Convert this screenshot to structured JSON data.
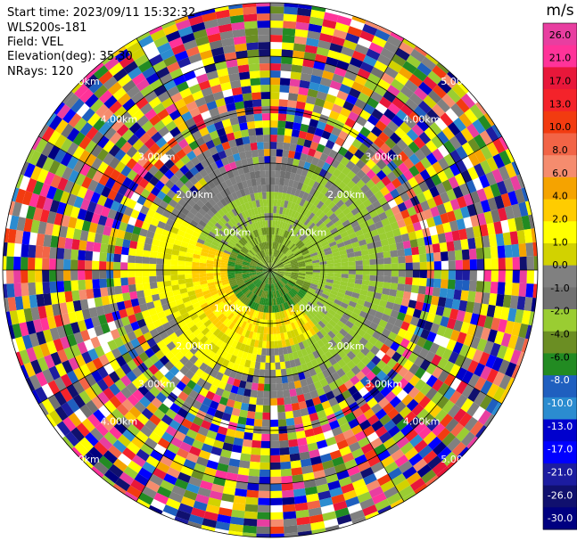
{
  "header": {
    "start_time": "Start time: 2023/09/11 15:32:32",
    "instrument": "WLS200s-181",
    "field": "Field: VEL",
    "elevation": "Elevation(deg): 35.30",
    "nrays": "NRays: 120"
  },
  "colorbar": {
    "unit": "m/s",
    "ticks": [
      "26.0",
      "21.0",
      "17.0",
      "13.0",
      "10.0",
      "8.0",
      "6.0",
      "4.0",
      "2.0",
      "1.0",
      "0.0",
      "-1.0",
      "-2.0",
      "-4.0",
      "-6.0",
      "-8.0",
      "-10.0",
      "-13.0",
      "-17.0",
      "-21.0",
      "-26.0",
      "-30.0"
    ],
    "colors": [
      "#e83ea0",
      "#ff3399",
      "#e8173a",
      "#f4232a",
      "#f23b10",
      "#f26446",
      "#f58c6e",
      "#f5a300",
      "#ffcc00",
      "#ffff00",
      "#d2d200",
      "#808080",
      "#707070",
      "#9acd32",
      "#6b8e23",
      "#228b22",
      "#1f5fbf",
      "#2b8cd0",
      "#0000cd",
      "#0000ff",
      "#1c1ca0",
      "#10106e",
      "#000080"
    ]
  },
  "chart_data": {
    "type": "ppi",
    "field": "VEL",
    "units": "m/s",
    "nrays": 120,
    "elevation_deg": 35.3,
    "range_rings_km": [
      "1.00km",
      "2.00km",
      "3.00km",
      "4.00km",
      "5.00km"
    ],
    "colorbar_range": [
      -30.0,
      26.0
    ],
    "pattern": {
      "near_range_km": 2.0,
      "north_region": "negative velocities (-1 to -2 m/s) around center and east",
      "west_south_region": "positive velocities (0 to 2 m/s) in west and south-west",
      "far_range": "noisy mixed values across full color range"
    }
  }
}
